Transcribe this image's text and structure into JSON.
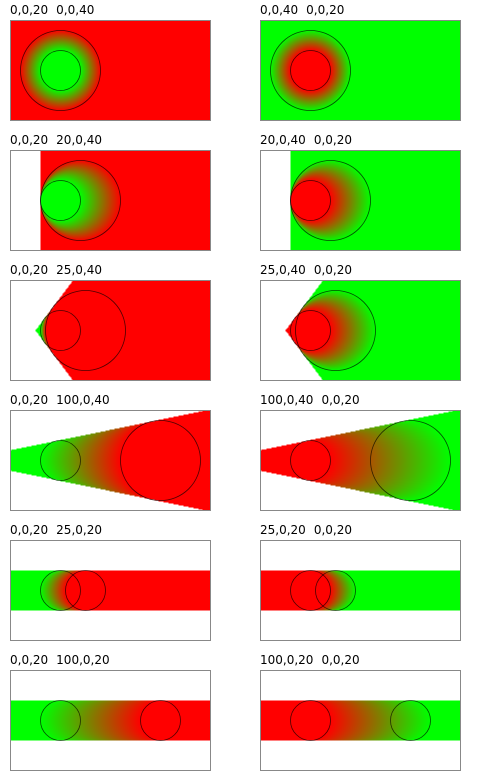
{
  "colors": {
    "a": "#ff0000",
    "b": "#00ff00"
  },
  "panels": [
    {
      "c1": {
        "x": 0,
        "y": 0,
        "r": 20
      },
      "c2": {
        "x": 0,
        "y": 0,
        "r": 40
      },
      "from": "b",
      "to": "a",
      "label1": "0,0,20",
      "label2": "0,0,40"
    },
    {
      "c1": {
        "x": 0,
        "y": 0,
        "r": 40
      },
      "c2": {
        "x": 0,
        "y": 0,
        "r": 20
      },
      "from": "b",
      "to": "a",
      "label1": "0,0,40",
      "label2": "0,0,20"
    },
    {
      "c1": {
        "x": 0,
        "y": 0,
        "r": 20
      },
      "c2": {
        "x": 20,
        "y": 0,
        "r": 40
      },
      "from": "b",
      "to": "a",
      "label1": "0,0,20",
      "label2": "20,0,40"
    },
    {
      "c1": {
        "x": 20,
        "y": 0,
        "r": 40
      },
      "c2": {
        "x": 0,
        "y": 0,
        "r": 20
      },
      "from": "b",
      "to": "a",
      "label1": "20,0,40",
      "label2": "0,0,20"
    },
    {
      "c1": {
        "x": 0,
        "y": 0,
        "r": 20
      },
      "c2": {
        "x": 25,
        "y": 0,
        "r": 40
      },
      "from": "b",
      "to": "a",
      "label1": "0,0,20",
      "label2": "25,0,40"
    },
    {
      "c1": {
        "x": 25,
        "y": 0,
        "r": 40
      },
      "c2": {
        "x": 0,
        "y": 0,
        "r": 20
      },
      "from": "b",
      "to": "a",
      "label1": "25,0,40",
      "label2": "0,0,20"
    },
    {
      "c1": {
        "x": 0,
        "y": 0,
        "r": 20
      },
      "c2": {
        "x": 100,
        "y": 0,
        "r": 40
      },
      "from": "b",
      "to": "a",
      "label1": "0,0,20",
      "label2": "100,0,40"
    },
    {
      "c1": {
        "x": 100,
        "y": 0,
        "r": 40
      },
      "c2": {
        "x": 0,
        "y": 0,
        "r": 20
      },
      "from": "b",
      "to": "a",
      "label1": "100,0,40",
      "label2": "0,0,20"
    },
    {
      "c1": {
        "x": 0,
        "y": 0,
        "r": 20
      },
      "c2": {
        "x": 25,
        "y": 0,
        "r": 20
      },
      "from": "b",
      "to": "a",
      "label1": "0,0,20",
      "label2": "25,0,20"
    },
    {
      "c1": {
        "x": 25,
        "y": 0,
        "r": 20
      },
      "c2": {
        "x": 0,
        "y": 0,
        "r": 20
      },
      "from": "b",
      "to": "a",
      "label1": "25,0,20",
      "label2": "0,0,20"
    },
    {
      "c1": {
        "x": 0,
        "y": 0,
        "r": 20
      },
      "c2": {
        "x": 100,
        "y": 0,
        "r": 20
      },
      "from": "b",
      "to": "a",
      "label1": "0,0,20",
      "label2": "100,0,20"
    },
    {
      "c1": {
        "x": 100,
        "y": 0,
        "r": 20
      },
      "c2": {
        "x": 0,
        "y": 0,
        "r": 20
      },
      "from": "b",
      "to": "a",
      "label1": "100,0,20",
      "label2": "0,0,20"
    }
  ]
}
